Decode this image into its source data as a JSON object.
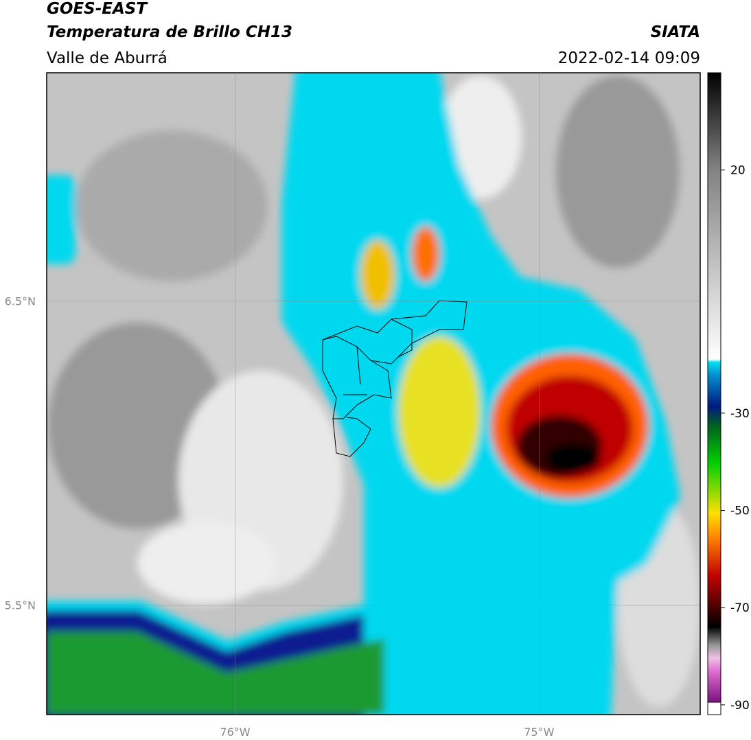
{
  "header": {
    "title": "GOES-EAST",
    "subtitle": "Temperatura de Brillo CH13",
    "source": "SIATA",
    "region": "Valle de Aburrá",
    "datetime": "2022-02-14 09:09"
  },
  "map": {
    "xlim": [
      -76.62,
      -74.47
    ],
    "ylim": [
      5.14,
      7.25
    ],
    "xticks": [
      {
        "value": -76,
        "label": "76°W"
      },
      {
        "value": -75,
        "label": "75°W"
      }
    ],
    "yticks": [
      {
        "value": 6.5,
        "label": "6.5°N"
      },
      {
        "value": 5.5,
        "label": "5.5°N"
      }
    ]
  },
  "colorbar": {
    "lim": [
      -92,
      40
    ],
    "ticks": [
      -90,
      -70,
      -50,
      -30,
      20
    ]
  }
}
